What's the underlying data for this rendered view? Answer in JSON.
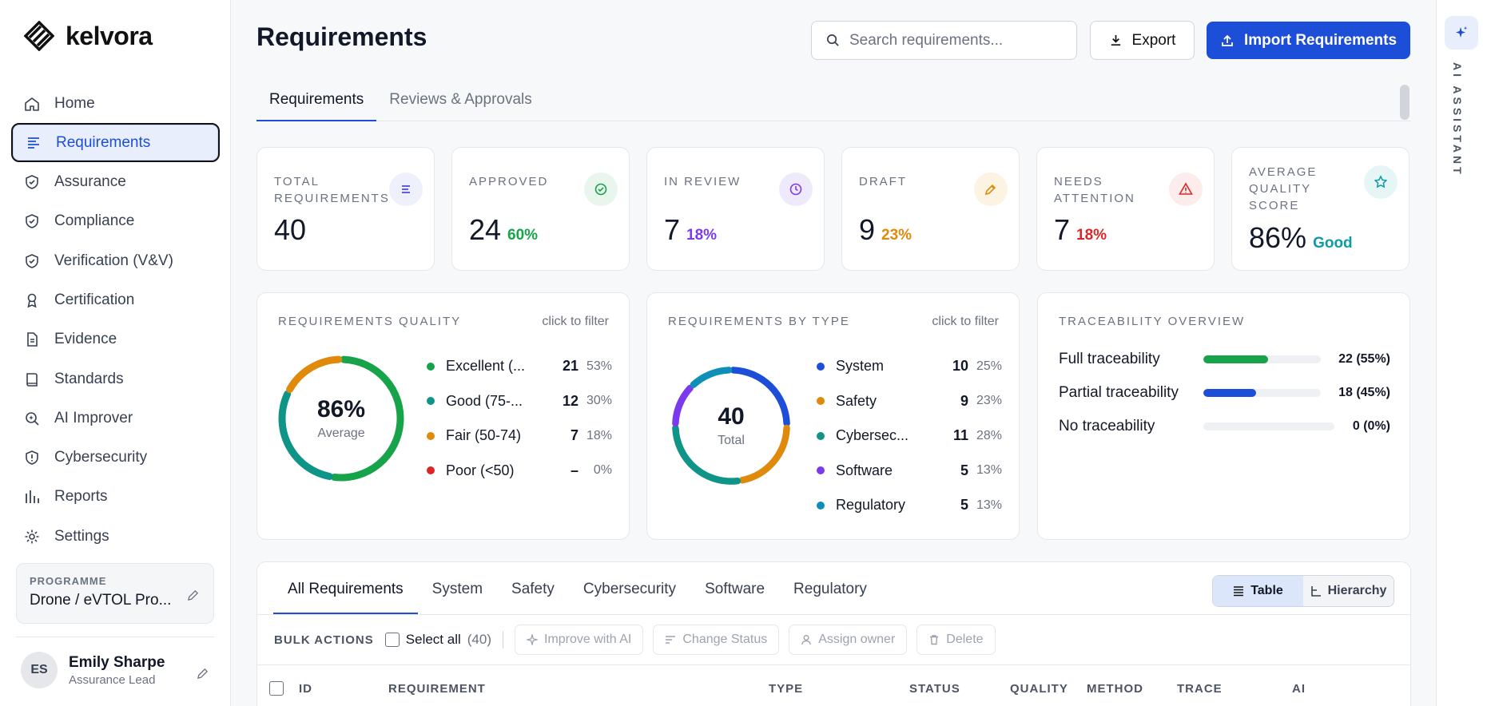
{
  "app": {
    "logo_text": "kelvora"
  },
  "sidebar": {
    "items": [
      {
        "label": "Home",
        "icon": "home-icon"
      },
      {
        "label": "Requirements",
        "icon": "list-icon"
      },
      {
        "label": "Assurance",
        "icon": "shield-check-icon"
      },
      {
        "label": "Compliance",
        "icon": "shield-check-icon"
      },
      {
        "label": "Verification (V&V)",
        "icon": "shield-check-icon"
      },
      {
        "label": "Certification",
        "icon": "award-icon"
      },
      {
        "label": "Evidence",
        "icon": "file-icon"
      },
      {
        "label": "Standards",
        "icon": "book-icon"
      },
      {
        "label": "AI Improver",
        "icon": "search-sparkle-icon"
      },
      {
        "label": "Cybersecurity",
        "icon": "shield-alert-icon"
      },
      {
        "label": "Reports",
        "icon": "bar-chart-icon"
      },
      {
        "label": "Settings",
        "icon": "gear-icon"
      }
    ],
    "active_index": 1,
    "programme": {
      "label": "PROGRAMME",
      "value": "Drone / eVTOL Pro..."
    },
    "user": {
      "initials": "ES",
      "name": "Emily Sharpe",
      "role": "Assurance Lead"
    }
  },
  "header": {
    "title": "Requirements",
    "search_placeholder": "Search requirements...",
    "export_label": "Export",
    "import_label": "Import Requirements"
  },
  "tabs": [
    {
      "label": "Requirements"
    },
    {
      "label": "Reviews & Approvals"
    }
  ],
  "kpis": [
    {
      "label": "TOTAL REQUIREMENTS",
      "value": "40",
      "pct": "",
      "color": "#4f46e5",
      "bg": "#eef0fb"
    },
    {
      "label": "APPROVED",
      "value": "24",
      "pct": "60%",
      "color": "#16a34a",
      "bg": "#e8f6ee"
    },
    {
      "label": "IN REVIEW",
      "value": "7",
      "pct": "18%",
      "color": "#7c3aed",
      "bg": "#efeafb"
    },
    {
      "label": "DRAFT",
      "value": "9",
      "pct": "23%",
      "color": "#e08a0b",
      "bg": "#fdf3e3"
    },
    {
      "label": "NEEDS ATTENTION",
      "value": "7",
      "pct": "18%",
      "color": "#dc2626",
      "bg": "#fdecec"
    },
    {
      "label": "AVERAGE QUALITY SCORE",
      "value": "86%",
      "pct": "Good",
      "color": "#0e9aa7",
      "bg": "#e6f6f7"
    }
  ],
  "quality": {
    "title": "REQUIREMENTS QUALITY",
    "filter": "click to filter",
    "center_value": "86%",
    "center_label": "Average",
    "items": [
      {
        "name": "Excellent (...",
        "count": "21",
        "pct": "53%",
        "value": 21,
        "color": "#16a34a"
      },
      {
        "name": "Good (75-...",
        "count": "12",
        "pct": "30%",
        "value": 12,
        "color": "#0f9488"
      },
      {
        "name": "Fair (50-74)",
        "count": "7",
        "pct": "18%",
        "value": 7,
        "color": "#e08a0b"
      },
      {
        "name": "Poor (<50)",
        "count": "–",
        "pct": "0%",
        "value": 0,
        "color": "#dc2626"
      }
    ]
  },
  "by_type": {
    "title": "REQUIREMENTS BY TYPE",
    "filter": "click to filter",
    "center_value": "40",
    "center_label": "Total",
    "items": [
      {
        "name": "System",
        "count": "10",
        "pct": "25%",
        "value": 10,
        "color": "#1d4ed8"
      },
      {
        "name": "Safety",
        "count": "9",
        "pct": "23%",
        "value": 9,
        "color": "#e08a0b"
      },
      {
        "name": "Cybersec...",
        "count": "11",
        "pct": "28%",
        "value": 11,
        "color": "#0f9488"
      },
      {
        "name": "Software",
        "count": "5",
        "pct": "13%",
        "value": 5,
        "color": "#7c3aed"
      },
      {
        "name": "Regulatory",
        "count": "5",
        "pct": "13%",
        "value": 5,
        "color": "#0e8fb8"
      }
    ]
  },
  "traceability": {
    "title": "TRACEABILITY OVERVIEW",
    "rows": [
      {
        "name": "Full traceability",
        "value": "22 (55%)",
        "fraction": 0.55,
        "color": "#16a34a"
      },
      {
        "name": "Partial traceability",
        "value": "18 (45%)",
        "fraction": 0.45,
        "color": "#1d4ed8"
      },
      {
        "name": "No traceability",
        "value": "0 (0%)",
        "fraction": 0,
        "color": "#9ca3af"
      }
    ]
  },
  "table": {
    "tabs": [
      "All Requirements",
      "System",
      "Safety",
      "Cybersecurity",
      "Software",
      "Regulatory"
    ],
    "view_table": "Table",
    "view_hierarchy": "Hierarchy",
    "bulk_label": "BULK ACTIONS",
    "select_all": "Select all",
    "select_count": "(40)",
    "actions": [
      "Improve with AI",
      "Change Status",
      "Assign owner",
      "Delete"
    ],
    "columns": [
      "ID",
      "REQUIREMENT",
      "TYPE",
      "STATUS",
      "QUALITY",
      "METHOD",
      "TRACE",
      "AI"
    ]
  },
  "ai_rail": {
    "label": "AI ASSISTANT"
  }
}
